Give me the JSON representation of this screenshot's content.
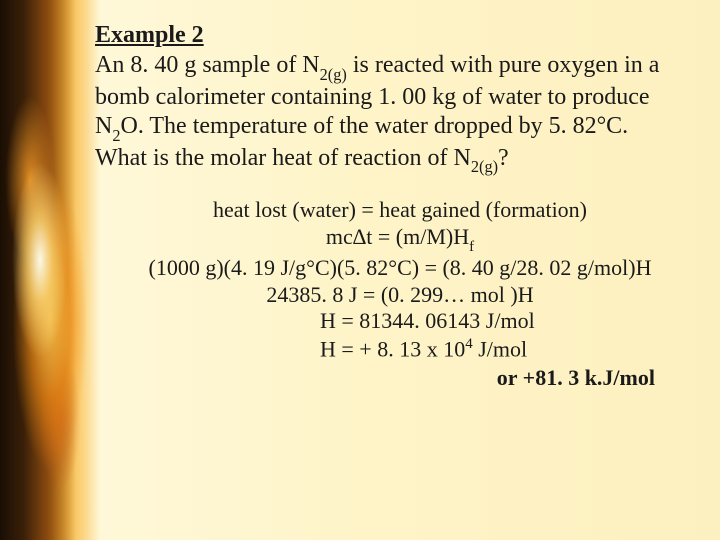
{
  "heading": "Example 2",
  "problem": {
    "line1_pre": "An 8. 40 g sample of N",
    "line1_sub": "2(g)",
    "line1_post": " is reacted with pure oxygen in a",
    "line2": "bomb calorimeter containing 1. 00 kg of water to produce",
    "line3_pre": "N",
    "line3_sub": "2",
    "line3_post": "O.  The temperature of the water dropped by 5. 82°C.",
    "line4_pre": "What is the molar heat of reaction of N",
    "line4_sub": "2(g)",
    "line4_post": "?"
  },
  "work": {
    "eq1": "heat lost (water) = heat gained (formation)",
    "eq2_pre": "mc∆t = (m/M)H",
    "eq2_sub": "f",
    "eq3": "(1000 g)(4. 19 J/g°C)(5. 82°C) = (8. 40 g/28. 02 g/mol)H",
    "eq4": "24385. 8  J = (0. 299… mol )H",
    "eq5": "H  = 81344. 06143 J/mol",
    "eq6_pre": "H  = + 8. 13 x 10",
    "eq6_sup": "4",
    "eq6_post": " J/mol",
    "final": "or +81. 3 k.J/mol"
  },
  "colors": {
    "text": "#1a1a1a",
    "bg_light": "#fdf0c0",
    "flame_dark": "#2a1808",
    "flame_orange": "#f8a818"
  }
}
